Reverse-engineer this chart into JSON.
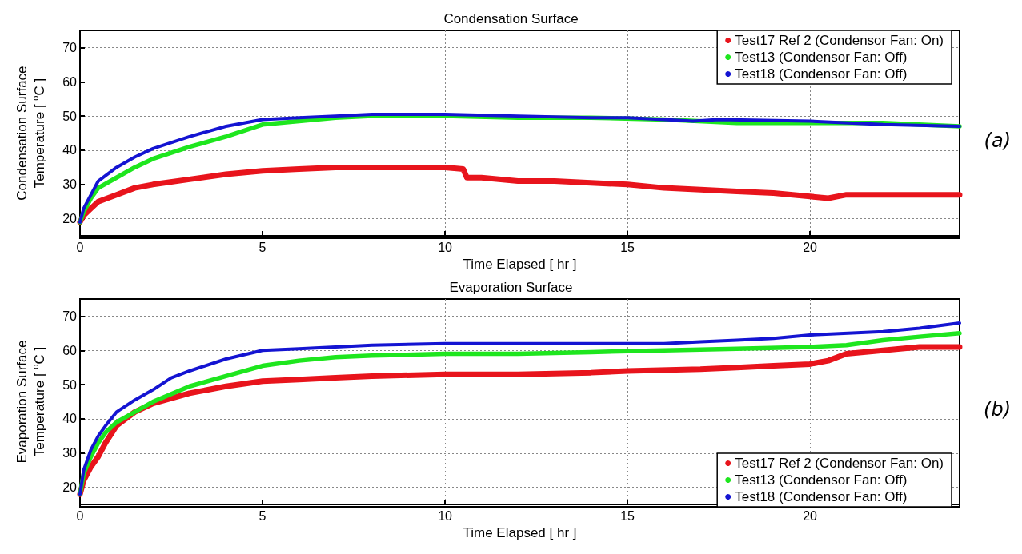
{
  "chart_data": [
    {
      "type": "line",
      "title": "Condensation Surface",
      "xlabel": "Time Elapsed [ hr ]",
      "ylabel": "Condensation Surface\nTemperature [ $^{o}$C ]",
      "xlim": [
        0,
        24.1
      ],
      "xticks": [
        0,
        5,
        10,
        15,
        20
      ],
      "ylim": [
        15,
        75
      ],
      "yticks": [
        20,
        30,
        40,
        50,
        60,
        70
      ],
      "grid": true,
      "legend": "top right",
      "annotations": [
        "(a)"
      ],
      "series": [
        {
          "name": "Test17 Ref 2 (Condensor Fan: On)",
          "color": "#e8141c",
          "x": [
            0,
            0.1,
            0.3,
            0.5,
            1,
            1.5,
            2,
            3,
            4,
            5,
            6,
            7,
            8,
            9,
            10,
            10.5,
            10.6,
            11,
            12,
            13,
            14,
            15,
            16,
            17,
            18,
            19,
            20,
            20.5,
            21,
            22,
            23,
            24.1
          ],
          "values": [
            19,
            21,
            23,
            25,
            27,
            29,
            30,
            31.5,
            33,
            34,
            34.5,
            35,
            35,
            35,
            35,
            34.5,
            32,
            32,
            31,
            31,
            30.5,
            30,
            29,
            28.5,
            28,
            27.5,
            26.5,
            26,
            27,
            27,
            27,
            27
          ]
        },
        {
          "name": "Test13 (Condensor Fan: Off)",
          "color": "#1ee61e",
          "x": [
            0,
            0.1,
            0.3,
            0.5,
            1,
            1.5,
            2,
            3,
            4,
            5,
            6,
            7,
            8,
            10,
            12,
            14,
            16,
            18,
            20,
            22,
            24.1
          ],
          "values": [
            19,
            22,
            26,
            29,
            32,
            35,
            37.5,
            41,
            44,
            47.5,
            48.5,
            49.5,
            50,
            50,
            49.5,
            49.5,
            49,
            48,
            48,
            48,
            47
          ]
        },
        {
          "name": "Test18 (Condensor Fan: Off)",
          "color": "#1414d2",
          "x": [
            0,
            0.1,
            0.3,
            0.5,
            1,
            1.5,
            2,
            3,
            4,
            5,
            6,
            7,
            8,
            10,
            12,
            14,
            15,
            16,
            16.8,
            17.5,
            20,
            22,
            24.1
          ],
          "values": [
            19,
            23,
            27,
            31,
            35,
            38,
            40.5,
            44,
            47,
            49,
            49.5,
            50,
            50.5,
            50.5,
            50,
            49.5,
            49.5,
            49,
            48.5,
            49,
            48.5,
            47.5,
            47
          ]
        }
      ]
    },
    {
      "type": "line",
      "title": "Evaporation Surface",
      "xlabel": "Time Elapsed [ hr ]",
      "ylabel": "Evaporation Surface\nTemperature [ $^{o}$C ]",
      "xlim": [
        0,
        24.1
      ],
      "xticks": [
        0,
        5,
        10,
        15,
        20
      ],
      "ylim": [
        15,
        75
      ],
      "yticks": [
        20,
        30,
        40,
        50,
        60,
        70
      ],
      "grid": true,
      "legend": "bottom right",
      "annotations": [
        "(b)"
      ],
      "series": [
        {
          "name": "Test17 Ref 2 (Condensor Fan: On)",
          "color": "#e8141c",
          "x": [
            0,
            0.1,
            0.3,
            0.5,
            0.7,
            1,
            1.5,
            2,
            3,
            4,
            5,
            6,
            7,
            8,
            10,
            12,
            14,
            15,
            17,
            18,
            19,
            20,
            20.5,
            21,
            22,
            23,
            24.1
          ],
          "values": [
            18,
            22,
            26,
            29,
            33,
            38,
            42,
            44.5,
            47.5,
            49.5,
            51,
            51.5,
            52,
            52.5,
            53,
            53,
            53.5,
            54,
            54.5,
            55,
            55.5,
            56,
            57,
            59,
            60,
            61,
            61
          ]
        },
        {
          "name": "Test13 (Condensor Fan: Off)",
          "color": "#1ee61e",
          "x": [
            0,
            0.1,
            0.3,
            0.5,
            0.7,
            1,
            1.5,
            2,
            3,
            4,
            5,
            6,
            7,
            8,
            10,
            12,
            14,
            16,
            18,
            20,
            21,
            22,
            23,
            24.1
          ],
          "values": [
            18,
            24,
            29,
            33,
            36,
            39,
            42,
            45,
            49.5,
            52.5,
            55.5,
            57,
            58,
            58.5,
            59,
            59,
            59.5,
            60,
            60.5,
            61,
            61.5,
            63,
            64,
            65
          ]
        },
        {
          "name": "Test18 (Condensor Fan: Off)",
          "color": "#1414d2",
          "x": [
            0,
            0.1,
            0.3,
            0.5,
            0.7,
            1,
            1.5,
            2,
            2.5,
            3,
            4,
            5,
            6,
            7,
            8,
            10,
            12,
            14,
            16,
            17,
            18,
            19,
            20,
            22,
            23,
            24.1
          ],
          "values": [
            18,
            25,
            31,
            35,
            38,
            42,
            45.5,
            48.5,
            52,
            54,
            57.5,
            60,
            60.5,
            61,
            61.5,
            62,
            62,
            62,
            62,
            62.5,
            63,
            63.5,
            64.5,
            65.5,
            66.5,
            68
          ]
        }
      ]
    }
  ]
}
